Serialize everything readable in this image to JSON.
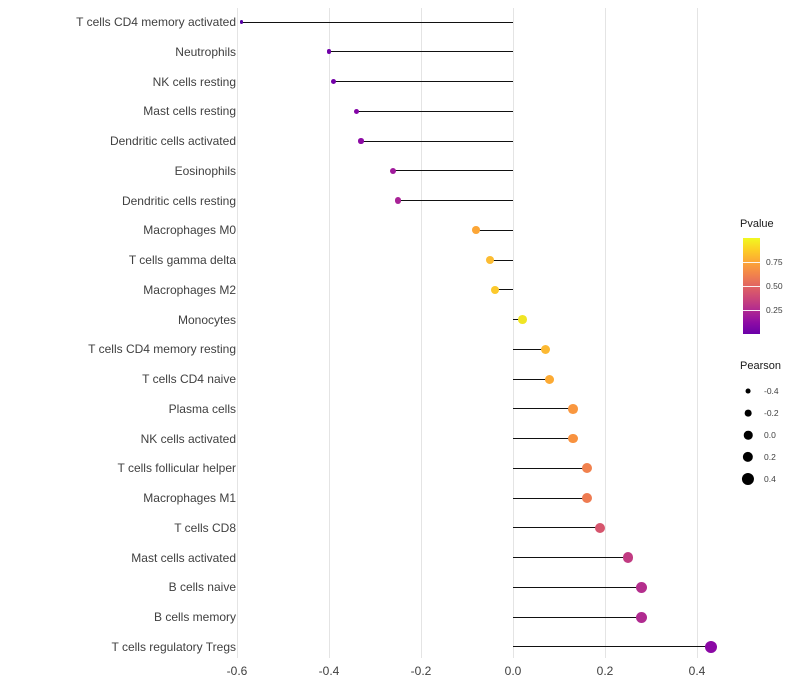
{
  "chart_data": {
    "type": "lollipop",
    "title": "",
    "xlabel": "",
    "ylabel": "",
    "x_tick_labels": [
      "-0.6",
      "-0.4",
      "-0.2",
      "0.0",
      "0.2",
      "0.4"
    ],
    "x_tick_values": [
      -0.6,
      -0.4,
      -0.2,
      0.0,
      0.2,
      0.4
    ],
    "xlim": [
      -0.63,
      0.47
    ],
    "grid": "major-vertical",
    "stem_origin": 0.0,
    "points": [
      {
        "label": "T cells CD4 memory activated",
        "pearson": -0.59,
        "pvalue": 0.005,
        "color": "#5601a4"
      },
      {
        "label": "Neutrophils",
        "pearson": -0.4,
        "pvalue": 0.05,
        "color": "#6f00a8"
      },
      {
        "label": "NK cells resting",
        "pearson": -0.39,
        "pvalue": 0.06,
        "color": "#7301a8"
      },
      {
        "label": "Mast cells resting",
        "pearson": -0.34,
        "pvalue": 0.1,
        "color": "#8405a7"
      },
      {
        "label": "Dendritic cells activated",
        "pearson": -0.33,
        "pvalue": 0.11,
        "color": "#8d0ba5"
      },
      {
        "label": "Eosinophils",
        "pearson": -0.26,
        "pvalue": 0.18,
        "color": "#a01a9c"
      },
      {
        "label": "Dendritic cells resting",
        "pearson": -0.25,
        "pvalue": 0.2,
        "color": "#a82296"
      },
      {
        "label": "Macrophages M0",
        "pearson": -0.08,
        "pvalue": 0.8,
        "color": "#fca636"
      },
      {
        "label": "T cells gamma delta",
        "pearson": -0.05,
        "pvalue": 0.86,
        "color": "#fcbc32"
      },
      {
        "label": "Macrophages M2",
        "pearson": -0.04,
        "pvalue": 0.88,
        "color": "#fcc92c"
      },
      {
        "label": "Monocytes",
        "pearson": 0.02,
        "pvalue": 0.95,
        "color": "#f0e524"
      },
      {
        "label": "T cells CD4 memory resting",
        "pearson": 0.07,
        "pvalue": 0.84,
        "color": "#fcb932"
      },
      {
        "label": "T cells CD4 naive",
        "pearson": 0.08,
        "pvalue": 0.79,
        "color": "#fcaa33"
      },
      {
        "label": "Plasma cells",
        "pearson": 0.13,
        "pvalue": 0.7,
        "color": "#f9973f"
      },
      {
        "label": "NK cells activated",
        "pearson": 0.13,
        "pvalue": 0.68,
        "color": "#f8923f"
      },
      {
        "label": "T cells follicular helper",
        "pearson": 0.16,
        "pvalue": 0.62,
        "color": "#f1814d"
      },
      {
        "label": "Macrophages M1",
        "pearson": 0.16,
        "pvalue": 0.6,
        "color": "#ee7b51"
      },
      {
        "label": "T cells CD8",
        "pearson": 0.19,
        "pvalue": 0.46,
        "color": "#d6556d"
      },
      {
        "label": "Mast cells activated",
        "pearson": 0.25,
        "pvalue": 0.27,
        "color": "#c13b82"
      },
      {
        "label": "B cells naive",
        "pearson": 0.28,
        "pvalue": 0.22,
        "color": "#b42e8d"
      },
      {
        "label": "B cells memory",
        "pearson": 0.28,
        "pvalue": 0.2,
        "color": "#b02a90"
      },
      {
        "label": "T cells regulatory  Tregs",
        "pearson": 0.43,
        "pvalue": 0.05,
        "color": "#8b08a5"
      }
    ],
    "legends": {
      "pvalue": {
        "title": "Pvalue",
        "tick_labels": [
          "0.75",
          "0.50",
          "0.25"
        ],
        "tick_positions": [
          0.25,
          0.5,
          0.75
        ],
        "gradient_stops": [
          "#f0f921",
          "#fcce25",
          "#fca636",
          "#f2844b",
          "#e16462",
          "#cc4778",
          "#b12a90",
          "#8f0da4",
          "#6a00a8"
        ]
      },
      "pearson": {
        "title": "Pearson",
        "entries": [
          {
            "label": "-0.4",
            "value": -0.4
          },
          {
            "label": "-0.2",
            "value": -0.2
          },
          {
            "label": "0.0",
            "value": 0.0
          },
          {
            "label": "0.2",
            "value": 0.2
          },
          {
            "label": "0.4",
            "value": 0.4
          }
        ]
      }
    }
  }
}
